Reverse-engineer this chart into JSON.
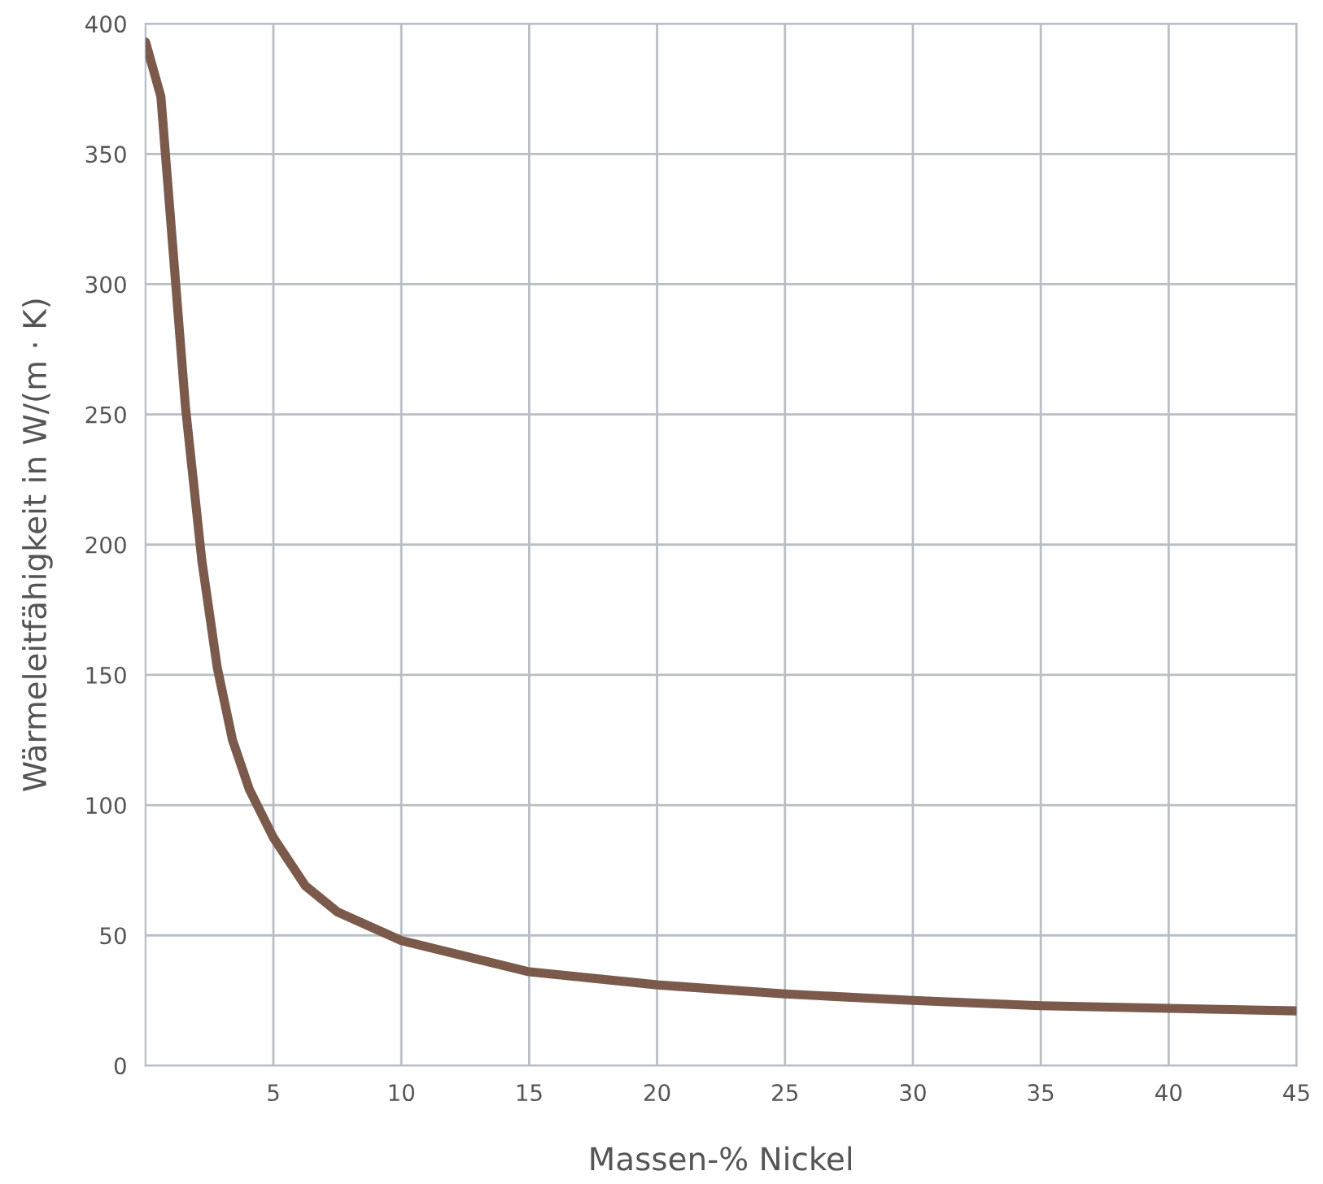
{
  "chart_data": {
    "type": "line",
    "xlabel": "Massen-% Nickel",
    "ylabel": "Wärmeleitfähigkeit in W/(m · K)",
    "series": [
      {
        "color": "#7b5a4b",
        "x": [
          0,
          0.6,
          1.56,
          2.2,
          2.8,
          3.4,
          4.06,
          5,
          6.25,
          7.5,
          10,
          15,
          20,
          25,
          30,
          35,
          40,
          45
        ],
        "values": [
          393,
          372,
          253,
          194,
          153,
          125,
          106,
          87.5,
          69,
          59,
          48,
          36,
          31,
          27.5,
          25,
          23,
          22,
          21
        ]
      }
    ],
    "xlim": [
      0,
      45
    ],
    "xticks": [
      5,
      10,
      15,
      20,
      25,
      30,
      35,
      40,
      45
    ],
    "ylim": [
      0,
      400
    ],
    "yticks": [
      0,
      50,
      100,
      150,
      200,
      250,
      300,
      350,
      400
    ],
    "grid": true,
    "marker": "none",
    "line_style": "solid"
  }
}
